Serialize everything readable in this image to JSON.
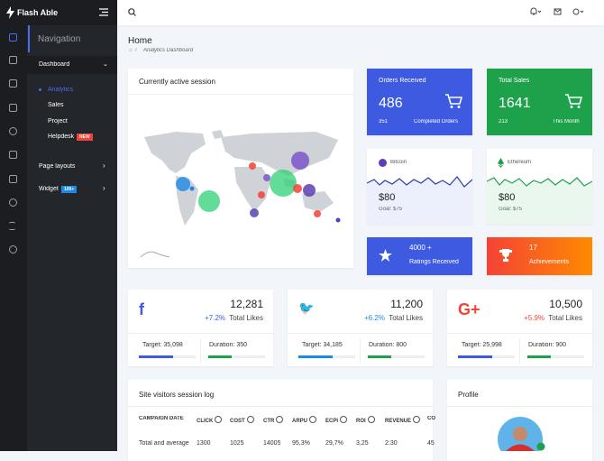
{
  "brand": "Flash Able",
  "sidebar": {
    "heading": "Navigation",
    "dashboard": "Dashboard",
    "sub_items": [
      "Analytics",
      "Sales",
      "Project",
      "Helpdesk"
    ],
    "helpdesk_badge": "NEW",
    "page_layouts": "Page layouts",
    "widget": "Widget",
    "widget_badge": "100+"
  },
  "page": {
    "title": "Home",
    "breadcrumb": "Analytics Dashboard"
  },
  "session_card": {
    "title": "Currently active session"
  },
  "orders": {
    "title": "Orders Received",
    "value": "486",
    "sub_value": "351",
    "sub_label": "Completed Orders"
  },
  "sales": {
    "title": "Total Sales",
    "value": "1641",
    "sub_value": "213",
    "sub_label": "This Month"
  },
  "bitcoin": {
    "name": "Bitcoin",
    "value": "$80",
    "goal": "Goal: $75"
  },
  "ethereum": {
    "name": "Ethereum",
    "value": "$80",
    "goal": "Goal: $75"
  },
  "ratings": {
    "value": "4000 +",
    "label": "Ratings Received"
  },
  "achievements": {
    "value": "17",
    "label": "Achievements"
  },
  "social": [
    {
      "value": "12,281",
      "change": "+7.2%",
      "label": "Total Likes",
      "target": "Target: 35,098",
      "duration": "Duration: 350"
    },
    {
      "value": "11,200",
      "change": "+6.2%",
      "label": "Total Likes",
      "target": "Target: 34,185",
      "duration": "Duration: 800"
    },
    {
      "value": "10,500",
      "change": "+5.9%",
      "label": "Total Likes",
      "target": "Target: 25,998",
      "duration": "Duration: 900"
    }
  ],
  "log_table": {
    "title": "Site visitors session log",
    "headers": [
      "CAMPAIGN DATE",
      "CLICK",
      "COST",
      "CTR",
      "ARPU",
      "ECPI",
      "ROI",
      "REVENUE",
      "CO"
    ],
    "rows": [
      [
        "Total and average",
        "1300",
        "1025",
        "14005",
        "95,3%",
        "29,7%",
        "3,25",
        "2:30",
        "45"
      ]
    ]
  },
  "profile": {
    "title": "Profile"
  }
}
